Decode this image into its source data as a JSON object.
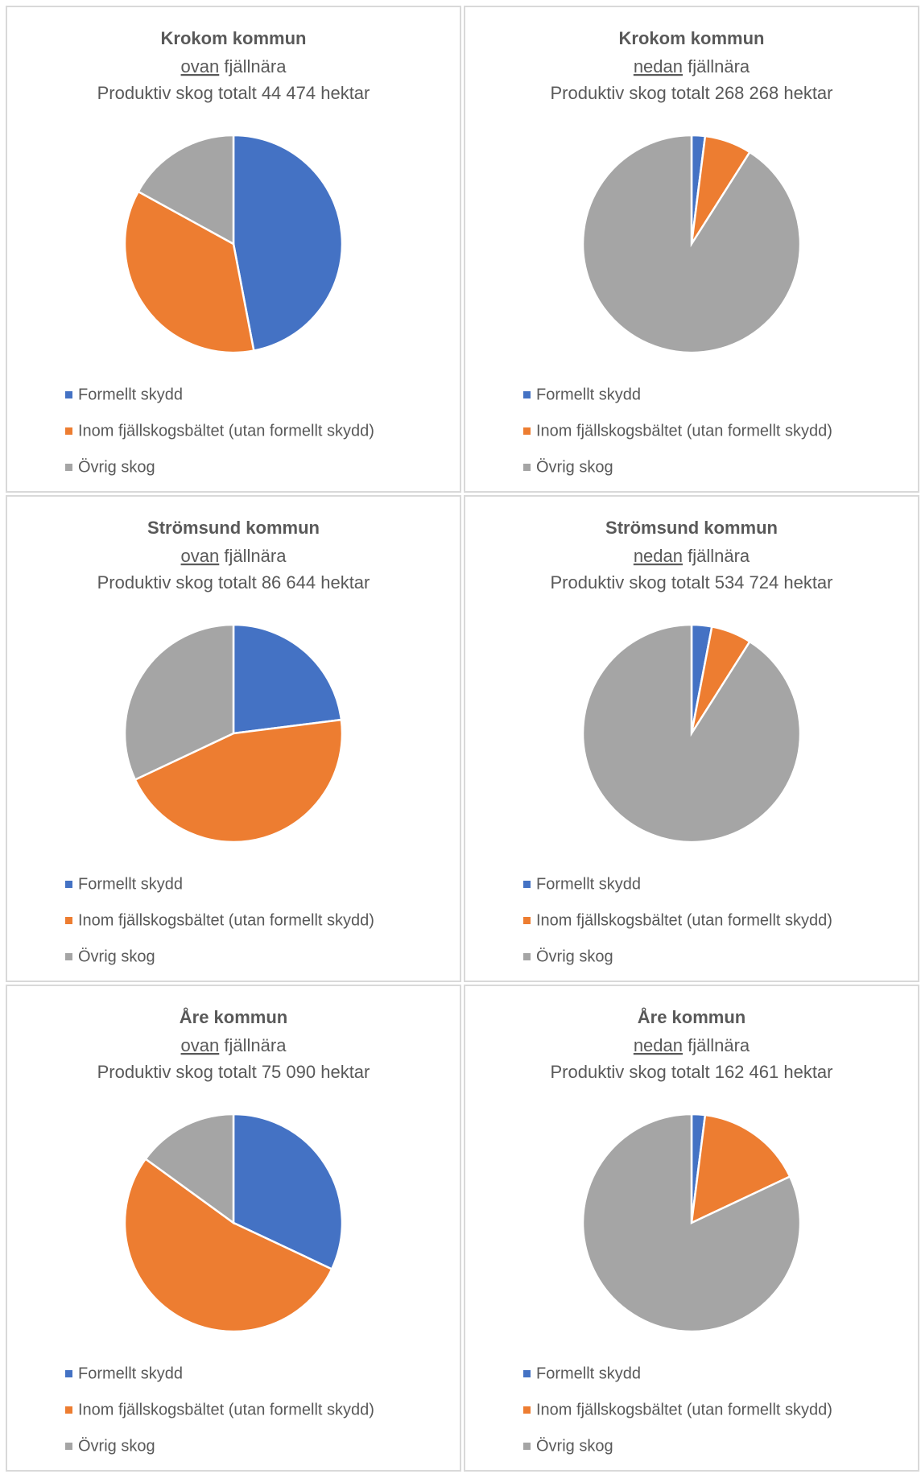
{
  "chart_data": [
    {
      "type": "pie",
      "title": "Krokom kommun",
      "subtitle": [
        "ovan",
        "fjällnära"
      ],
      "note": "Produktiv skog totalt 44 474 hektar",
      "categories": [
        "Formellt skydd",
        "Inom fjällskogsbältet (utan formellt skydd)",
        "Övrig skog"
      ],
      "values": [
        47,
        36,
        17
      ],
      "colors": [
        "#4472c4",
        "#ed7d31",
        "#a5a5a5"
      ]
    },
    {
      "type": "pie",
      "title": "Krokom kommun",
      "subtitle": [
        "nedan",
        "fjällnära"
      ],
      "note": "Produktiv skog totalt 268 268 hektar",
      "categories": [
        "Formellt skydd",
        "Inom fjällskogsbältet (utan formellt skydd)",
        "Övrig skog"
      ],
      "values": [
        2,
        7,
        91
      ],
      "colors": [
        "#4472c4",
        "#ed7d31",
        "#a5a5a5"
      ]
    },
    {
      "type": "pie",
      "title": "Strömsund kommun",
      "subtitle": [
        "ovan",
        "fjällnära"
      ],
      "note": "Produktiv skog totalt 86 644  hektar",
      "categories": [
        "Formellt skydd",
        "Inom fjällskogsbältet (utan formellt skydd)",
        "Övrig skog"
      ],
      "values": [
        23,
        45,
        32
      ],
      "colors": [
        "#4472c4",
        "#ed7d31",
        "#a5a5a5"
      ]
    },
    {
      "type": "pie",
      "title": "Strömsund kommun",
      "subtitle": [
        "nedan",
        "fjällnära"
      ],
      "note": "Produktiv skog totalt 534 724 hektar",
      "categories": [
        "Formellt skydd",
        "Inom fjällskogsbältet (utan formellt skydd)",
        "Övrig skog"
      ],
      "values": [
        3,
        6,
        91
      ],
      "colors": [
        "#4472c4",
        "#ed7d31",
        "#a5a5a5"
      ]
    },
    {
      "type": "pie",
      "title": "Åre kommun",
      "subtitle": [
        "ovan",
        "fjällnära"
      ],
      "note": "Produktiv skog totalt 75 090 hektar",
      "categories": [
        "Formellt skydd",
        "Inom fjällskogsbältet (utan formellt skydd)",
        "Övrig skog"
      ],
      "values": [
        32,
        53,
        15
      ],
      "colors": [
        "#4472c4",
        "#ed7d31",
        "#a5a5a5"
      ]
    },
    {
      "type": "pie",
      "title": "Åre kommun",
      "subtitle": [
        "nedan",
        "fjällnära"
      ],
      "note": "Produktiv skog totalt 162 461 hektar",
      "categories": [
        "Formellt skydd",
        "Inom fjällskogsbältet (utan formellt skydd)",
        "Övrig skog"
      ],
      "values": [
        2,
        16,
        82
      ],
      "colors": [
        "#4472c4",
        "#ed7d31",
        "#a5a5a5"
      ]
    }
  ]
}
